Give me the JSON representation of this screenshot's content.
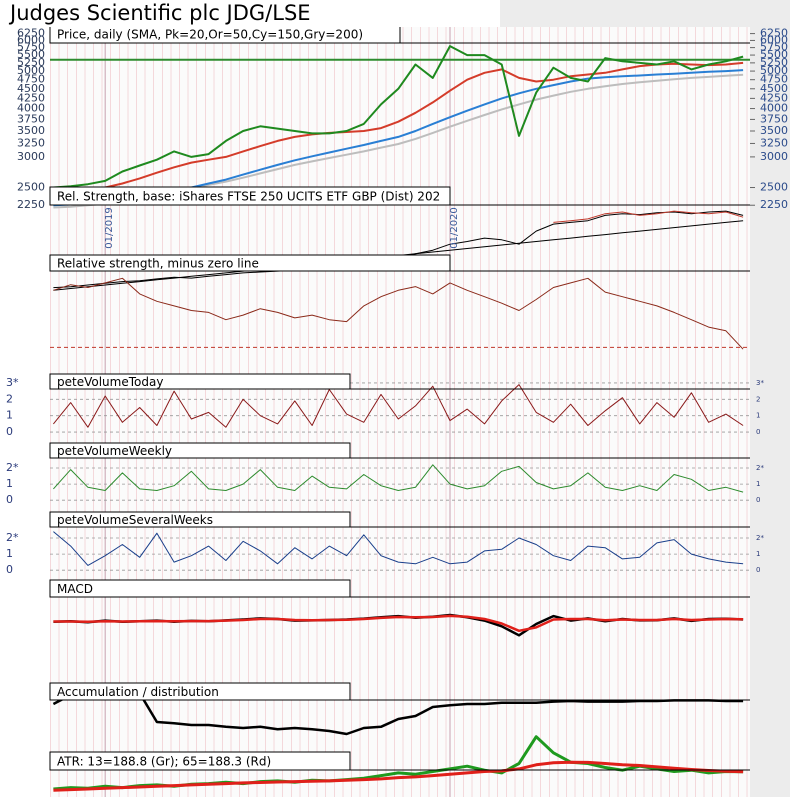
{
  "chart_data": {
    "type": "stock",
    "title": "Judges Scientific plc JDG/LSE",
    "xlim": [
      2018.84,
      2020.87
    ],
    "xticks": [
      {
        "value": 2019,
        "label": "01/2019"
      },
      {
        "value": 2020,
        "label": "01/2020"
      }
    ],
    "x": [
      2018.85,
      2018.9,
      2018.95,
      2019,
      2019.05,
      2019.1,
      2019.15,
      2019.2,
      2019.25,
      2019.3,
      2019.35,
      2019.4,
      2019.45,
      2019.5,
      2019.55,
      2019.6,
      2019.65,
      2019.7,
      2019.75,
      2019.8,
      2019.85,
      2019.9,
      2019.95,
      2020,
      2020.05,
      2020.1,
      2020.15,
      2020.2,
      2020.25,
      2020.3,
      2020.35,
      2020.4,
      2020.45,
      2020.5,
      2020.55,
      2020.6,
      2020.65,
      2020.7,
      2020.75,
      2020.8,
      2020.85
    ],
    "panels": [
      {
        "title": "Price, daily (SMA, Pk=20,Or=50,Cy=150,Gry=200)",
        "log": true,
        "ylim": [
          2200,
          6500
        ],
        "yticks": [
          2250,
          2500,
          3000,
          3250,
          3500,
          3750,
          4000,
          4250,
          4500,
          4750,
          5000,
          5250,
          5500,
          5750,
          6000,
          6250
        ],
        "hline": {
          "value": 5350,
          "color": "#2e8b2e"
        },
        "series": [
          {
            "color": "#bdbdbd",
            "values": [
              2220,
              2230,
              2250,
              2270,
              2300,
              2340,
              2390,
              2440,
              2490,
              2540,
              2590,
              2650,
              2720,
              2790,
              2860,
              2920,
              2980,
              3040,
              3100,
              3170,
              3240,
              3340,
              3460,
              3590,
              3720,
              3850,
              3980,
              4100,
              4220,
              4320,
              4420,
              4500,
              4570,
              4630,
              4680,
              4720,
              4760,
              4800,
              4830,
              4860,
              4890
            ]
          },
          {
            "color": "#2a7fd4",
            "values": [
              2250,
              2260,
              2280,
              2300,
              2320,
              2360,
              2400,
              2450,
              2500,
              2560,
              2620,
              2700,
              2780,
              2860,
              2940,
              3010,
              3080,
              3150,
              3220,
              3300,
              3380,
              3500,
              3650,
              3800,
              3950,
              4100,
              4250,
              4380,
              4500,
              4600,
              4700,
              4780,
              4820,
              4850,
              4870,
              4900,
              4920,
              4950,
              4980,
              5000,
              5030
            ]
          },
          {
            "color": "#d43c2a",
            "values": [
              2400,
              2430,
              2460,
              2500,
              2560,
              2640,
              2730,
              2820,
              2900,
              2950,
              3000,
              3100,
              3200,
              3300,
              3380,
              3430,
              3460,
              3480,
              3500,
              3560,
              3700,
              3900,
              4150,
              4450,
              4750,
              4950,
              5050,
              4800,
              4700,
              4750,
              4850,
              4900,
              4950,
              5050,
              5150,
              5200,
              5220,
              5200,
              5180,
              5200,
              5250
            ]
          },
          {
            "color": "#1f8a1f",
            "values": [
              2500,
              2520,
              2550,
              2600,
              2750,
              2850,
              2950,
              3100,
              3000,
              3050,
              3300,
              3500,
              3600,
              3550,
              3500,
              3450,
              3450,
              3500,
              3650,
              4100,
              4500,
              5200,
              4800,
              5800,
              5500,
              5500,
              5200,
              3400,
              4400,
              5100,
              4800,
              4700,
              5400,
              5300,
              5250,
              5200,
              5300,
              5050,
              5200,
              5300,
              5450
            ]
          }
        ]
      },
      {
        "title": "Rel. Strength, base: iShares FTSE 250 UCITS ETF GBP (Dist) 202",
        "ylim": [
          0,
          100
        ],
        "series": [
          {
            "color": "#000000",
            "values": [
              2,
              4,
              6,
              8,
              10,
              12,
              14,
              16,
              18,
              20,
              22,
              24,
              26,
              28,
              30,
              32,
              34,
              36,
              38,
              40,
              42,
              44,
              46,
              48,
              50,
              52,
              54,
              56,
              58,
              60,
              62,
              64,
              66,
              68,
              70,
              72,
              74,
              76,
              78,
              80,
              82
            ]
          },
          {
            "color": "#000000",
            "values": [
              5,
              6,
              8,
              10,
              12,
              13,
              15,
              17,
              16,
              18,
              20,
              22,
              23,
              24,
              25,
              25,
              26,
              27,
              30,
              35,
              40,
              44,
              48,
              55,
              58,
              62,
              60,
              55,
              70,
              78,
              80,
              82,
              88,
              90,
              89,
              91,
              92,
              90,
              92,
              93,
              88
            ]
          },
          {
            "color": "#c0392b",
            "values": [
              null,
              null,
              null,
              null,
              null,
              null,
              null,
              null,
              null,
              null,
              null,
              null,
              null,
              null,
              null,
              null,
              null,
              null,
              null,
              null,
              null,
              null,
              null,
              null,
              null,
              null,
              null,
              null,
              null,
              80,
              82,
              84,
              90,
              92,
              88,
              90,
              93,
              91,
              90,
              92,
              86
            ]
          }
        ]
      },
      {
        "title": "Relative strength, minus zero line",
        "ylim": [
          -5,
          97
        ],
        "zero": 0,
        "series": [
          {
            "color": "#8b2a1a",
            "values": [
              62,
              68,
              65,
              70,
              75,
              58,
              50,
              45,
              40,
              38,
              30,
              35,
              42,
              38,
              32,
              35,
              30,
              28,
              45,
              55,
              62,
              66,
              58,
              70,
              62,
              55,
              48,
              40,
              52,
              65,
              70,
              75,
              60,
              55,
              50,
              45,
              38,
              30,
              22,
              18,
              -2
            ]
          }
        ]
      },
      {
        "title": "peteVolumeToday",
        "ylim": [
          -0.3,
          3.3
        ],
        "yticks": [
          0,
          1,
          2,
          {
            "value": 3,
            "label": "3*"
          }
        ],
        "grid": true,
        "series": [
          {
            "color": "#8b1a1a",
            "values": [
              0.5,
              1.8,
              0.3,
              2.2,
              0.6,
              1.5,
              0.4,
              2.5,
              0.8,
              1.2,
              0.3,
              2.0,
              1.0,
              0.5,
              1.9,
              0.4,
              2.6,
              1.1,
              0.6,
              2.3,
              0.8,
              1.6,
              2.8,
              0.7,
              1.4,
              0.5,
              1.9,
              2.9,
              1.2,
              0.6,
              1.7,
              0.4,
              1.3,
              2.1,
              0.5,
              1.8,
              0.9,
              2.4,
              0.6,
              1.1,
              0.4
            ]
          }
        ]
      },
      {
        "title": "peteVolumeWeekly",
        "ylim": [
          -0.3,
          2.5
        ],
        "yticks": [
          0,
          1,
          {
            "value": 2,
            "label": "2*"
          }
        ],
        "grid": true,
        "series": [
          {
            "color": "#2e8b2e",
            "values": [
              0.7,
              1.9,
              0.8,
              0.6,
              1.7,
              0.7,
              0.6,
              0.9,
              1.8,
              0.7,
              0.6,
              1.0,
              1.9,
              0.8,
              0.6,
              1.5,
              0.8,
              0.7,
              1.6,
              0.9,
              0.6,
              0.8,
              2.2,
              1.0,
              0.7,
              0.9,
              1.8,
              2.1,
              1.1,
              0.7,
              0.9,
              1.7,
              0.8,
              0.6,
              0.9,
              0.6,
              1.6,
              1.3,
              0.6,
              0.8,
              0.5
            ]
          }
        ]
      },
      {
        "title": "peteVolumeSeveralWeeks",
        "ylim": [
          -0.3,
          2.5
        ],
        "yticks": [
          0,
          1,
          {
            "value": 2,
            "label": "2*"
          }
        ],
        "grid": true,
        "series": [
          {
            "color": "#1a3f8b",
            "values": [
              2.4,
              1.5,
              0.3,
              0.9,
              1.6,
              0.8,
              2.3,
              0.5,
              0.9,
              1.5,
              0.6,
              1.8,
              1.2,
              0.4,
              1.4,
              0.7,
              1.5,
              0.9,
              2.2,
              0.9,
              0.5,
              0.4,
              0.8,
              0.4,
              0.5,
              1.2,
              1.3,
              2.0,
              1.6,
              0.9,
              0.6,
              1.5,
              1.4,
              0.7,
              0.8,
              1.7,
              1.9,
              1.0,
              0.7,
              0.5,
              0.4
            ]
          }
        ]
      },
      {
        "title": "MACD",
        "ylim": [
          -100,
          100
        ],
        "series": [
          {
            "color": "#000000",
            "values": [
              -10,
              -8,
              -12,
              -5,
              -10,
              -8,
              -5,
              -10,
              -6,
              -8,
              -4,
              0,
              5,
              2,
              -5,
              -4,
              -2,
              0,
              4,
              10,
              15,
              8,
              12,
              20,
              10,
              -5,
              -30,
              -70,
              -20,
              15,
              -5,
              5,
              -8,
              2,
              -4,
              -3,
              5,
              -6,
              2,
              3,
              0
            ]
          },
          {
            "color": "#e0201a",
            "values": [
              -9,
              -9,
              -10,
              -8,
              -9,
              -8,
              -7,
              -8,
              -7,
              -7,
              -5,
              -2,
              2,
              2,
              -2,
              -3,
              -2,
              -1,
              2,
              7,
              11,
              10,
              11,
              16,
              12,
              2,
              -18,
              -50,
              -35,
              0,
              2,
              2,
              -3,
              0,
              -2,
              -2,
              2,
              -2,
              0,
              2,
              1
            ]
          }
        ]
      },
      {
        "title": "Accumulation / distribution",
        "ylim": [
          0,
          100
        ],
        "series": [
          {
            "color": "#000000",
            "values": [
              60,
              75,
              75,
              75,
              75,
              78,
              30,
              28,
              25,
              25,
              22,
              20,
              22,
              18,
              20,
              18,
              15,
              10,
              20,
              22,
              35,
              40,
              55,
              58,
              60,
              60,
              62,
              62,
              62,
              64,
              65,
              64,
              64,
              64,
              65,
              65,
              66,
              66,
              66,
              65,
              65
            ]
          }
        ]
      },
      {
        "title": "ATR: 13=188.8 (Gr); 65=188.3 (Rd)",
        "ylim": [
          0,
          500
        ],
        "series": [
          {
            "color": "#1f9a1f",
            "values": [
              60,
              70,
              65,
              80,
              70,
              85,
              90,
              80,
              95,
              100,
              110,
              100,
              115,
              120,
              110,
              125,
              120,
              130,
              140,
              160,
              180,
              170,
              190,
              210,
              230,
              200,
              180,
              250,
              450,
              330,
              260,
              250,
              220,
              200,
              230,
              210,
              190,
              200,
              180,
              190,
              189
            ]
          },
          {
            "color": "#e0201a",
            "values": [
              50,
              55,
              60,
              65,
              70,
              75,
              80,
              85,
              90,
              95,
              100,
              105,
              108,
              112,
              115,
              118,
              120,
              125,
              130,
              135,
              145,
              150,
              160,
              170,
              180,
              190,
              195,
              210,
              240,
              255,
              260,
              258,
              250,
              240,
              235,
              225,
              215,
              205,
              198,
              192,
              188
            ]
          }
        ]
      }
    ]
  }
}
